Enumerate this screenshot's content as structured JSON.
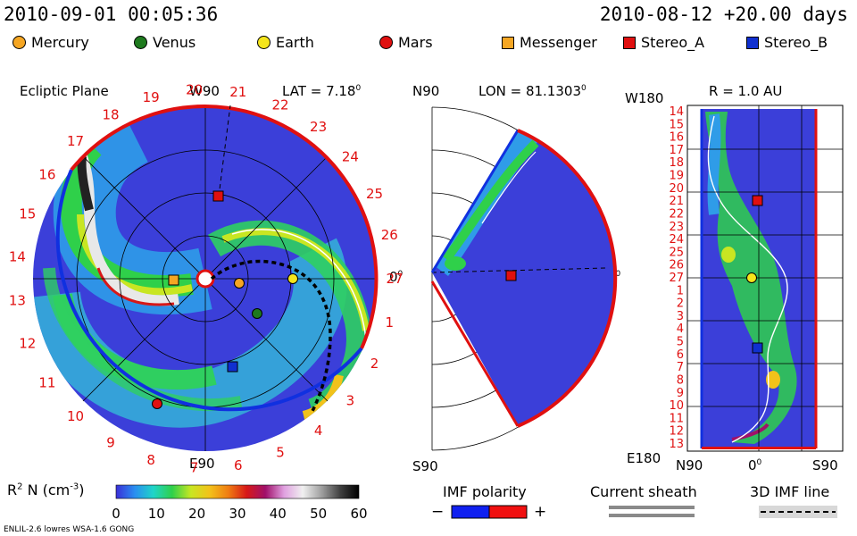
{
  "header": {
    "datetime": "2010-09-01 00:05:36",
    "run": "2010-08-12 +20.00 days"
  },
  "legend": [
    {
      "name": "Mercury",
      "shape": "circle",
      "color": "#f5a623"
    },
    {
      "name": "Venus",
      "shape": "circle",
      "color": "#1e7a1e"
    },
    {
      "name": "Earth",
      "shape": "circle",
      "color": "#f5e51b"
    },
    {
      "name": "Mars",
      "shape": "circle",
      "color": "#e01010"
    },
    {
      "name": "Messenger",
      "shape": "square",
      "color": "#f5a623"
    },
    {
      "name": "Stereo_A",
      "shape": "square",
      "color": "#e01010"
    },
    {
      "name": "Stereo_B",
      "shape": "square",
      "color": "#1030d0"
    }
  ],
  "panels": {
    "ecliptic": {
      "title": "Ecliptic Plane",
      "top_label": "W90",
      "lat_label": "LAT = 7.18",
      "lat_sup": "0",
      "bottom_label": "E90",
      "right_label": "0",
      "right_sup": "0",
      "carrington_numbers": [
        "27",
        "1",
        "2",
        "3",
        "4",
        "5",
        "6",
        "7",
        "8",
        "9",
        "10",
        "11",
        "12",
        "13",
        "14",
        "15",
        "16",
        "17",
        "18",
        "19",
        "20",
        "21",
        "22",
        "23",
        "24",
        "25",
        "26"
      ]
    },
    "meridional": {
      "top_label": "N90",
      "lon_label": "LON = 81.1303",
      "lon_sup": "0",
      "bottom_label": "S90",
      "right_label": "0",
      "right_sup": "0"
    },
    "radial": {
      "top_left": "W180",
      "r_label": "R = 1.0 AU",
      "bottom_left": "E180",
      "bottom_n": "N90",
      "bottom_mid": "0",
      "bottom_mid_sup": "0",
      "bottom_s": "S90",
      "rows": [
        "14",
        "15",
        "16",
        "17",
        "18",
        "19",
        "20",
        "21",
        "22",
        "23",
        "24",
        "25",
        "26",
        "27",
        "1",
        "2",
        "3",
        "4",
        "5",
        "6",
        "7",
        "8",
        "9",
        "10",
        "11",
        "12",
        "13"
      ]
    }
  },
  "colorbar": {
    "label": "R",
    "label_sup": "2",
    "label_rest": " N (cm",
    "label_exp": "-3",
    "label_end": ")",
    "ticks": [
      "0",
      "10",
      "20",
      "30",
      "40",
      "50",
      "60"
    ],
    "colors": [
      "#3a2fd8",
      "#2a8ef0",
      "#1fd5c8",
      "#2fd04a",
      "#c8e622",
      "#f2c21a",
      "#f07d12",
      "#d71818",
      "#a0106a",
      "#e0a0e0",
      "#f0f0f0",
      "#a0a0a0",
      "#404040",
      "#000000"
    ]
  },
  "imf_polarity": {
    "label": "IMF polarity",
    "minus": "−",
    "plus": "+",
    "neg_color": "#1020f0",
    "pos_color": "#f01010"
  },
  "current_sheath": {
    "label": "Current sheath"
  },
  "imf_line": {
    "label": "3D IMF line"
  },
  "footer": {
    "model": "ENLIL-2.6 lowres WSA-1.6 GONG"
  },
  "chart_data": [
    {
      "type": "heatmap",
      "title": "Ecliptic Plane",
      "quantity": "R^2 N (cm^-3)",
      "color_range": [
        0,
        60
      ],
      "objects": [
        {
          "name": "Mercury",
          "shape": "circle"
        },
        {
          "name": "Venus",
          "shape": "circle"
        },
        {
          "name": "Earth",
          "shape": "circle"
        },
        {
          "name": "Mars",
          "shape": "circle"
        },
        {
          "name": "Messenger",
          "shape": "square"
        },
        {
          "name": "Stereo_A",
          "shape": "square"
        },
        {
          "name": "Stereo_B",
          "shape": "square"
        }
      ]
    },
    {
      "type": "heatmap",
      "title": "LON = 81.1303°",
      "range_lat": [
        "N90",
        "S90"
      ]
    },
    {
      "type": "heatmap",
      "title": "R = 1.0 AU",
      "range_lon": [
        "W180",
        "E180"
      ],
      "range_lat": [
        "N90",
        "S90"
      ]
    }
  ]
}
